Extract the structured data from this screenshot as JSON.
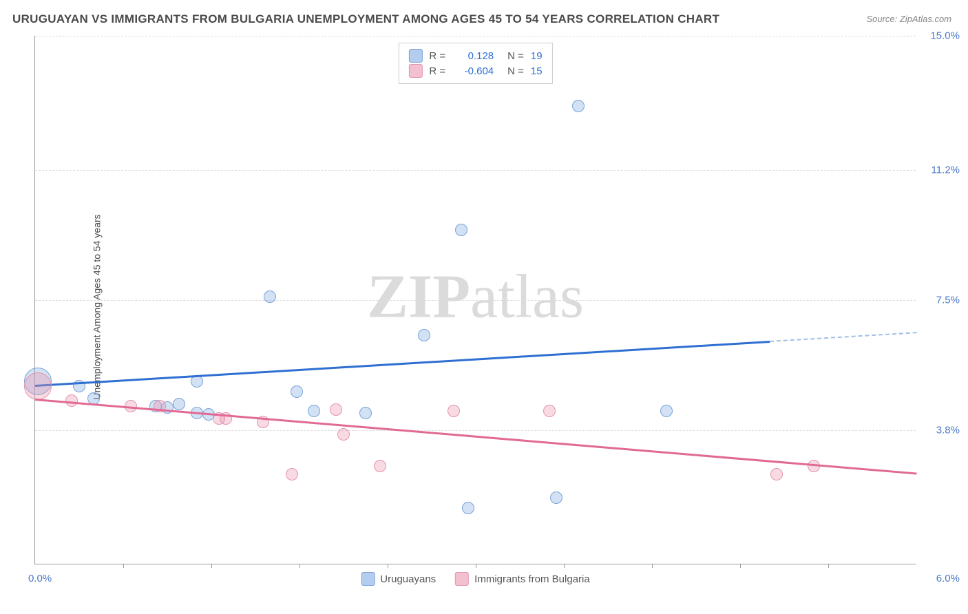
{
  "title": "URUGUAYAN VS IMMIGRANTS FROM BULGARIA UNEMPLOYMENT AMONG AGES 45 TO 54 YEARS CORRELATION CHART",
  "source": "Source: ZipAtlas.com",
  "ylabel": "Unemployment Among Ages 45 to 54 years",
  "watermark_a": "ZIP",
  "watermark_b": "atlas",
  "chart": {
    "type": "scatter",
    "xlim": [
      0.0,
      6.0
    ],
    "ylim": [
      0.0,
      15.0
    ],
    "x_min_label": "0.0%",
    "x_max_label": "6.0%",
    "y_ticks": [
      3.8,
      7.5,
      11.2,
      15.0
    ],
    "y_tick_labels": [
      "3.8%",
      "7.5%",
      "11.2%",
      "15.0%"
    ],
    "x_tick_positions": [
      0.6,
      1.2,
      1.8,
      2.4,
      3.0,
      3.6,
      4.2,
      4.8,
      5.4
    ],
    "background_color": "#ffffff",
    "grid_color": "#dcdcdc",
    "axis_color": "#9a9a9a",
    "tick_label_color": "#4a78c8",
    "marker_radius": 9,
    "series": [
      {
        "name": "Uruguayans",
        "color_fill": "rgba(130,170,225,0.35)",
        "color_stroke": "#7aa3d9",
        "line_color": "#2e6fd1",
        "r": 0.128,
        "n": 19,
        "trend": {
          "x1": 0.0,
          "y1": 5.1,
          "x2": 5.0,
          "y2": 6.35
        },
        "trend_ext": {
          "x1": 5.0,
          "y1": 6.35,
          "x2": 6.0,
          "y2": 6.6
        },
        "points": [
          {
            "x": 0.02,
            "y": 5.2,
            "big": true
          },
          {
            "x": 0.3,
            "y": 5.05
          },
          {
            "x": 0.4,
            "y": 4.7
          },
          {
            "x": 0.82,
            "y": 4.5
          },
          {
            "x": 0.9,
            "y": 4.45
          },
          {
            "x": 0.98,
            "y": 4.55
          },
          {
            "x": 1.1,
            "y": 5.2
          },
          {
            "x": 1.1,
            "y": 4.3
          },
          {
            "x": 1.18,
            "y": 4.25
          },
          {
            "x": 1.6,
            "y": 7.6
          },
          {
            "x": 1.78,
            "y": 4.9
          },
          {
            "x": 1.9,
            "y": 4.35
          },
          {
            "x": 2.25,
            "y": 4.3
          },
          {
            "x": 2.65,
            "y": 6.5
          },
          {
            "x": 2.9,
            "y": 9.5
          },
          {
            "x": 2.95,
            "y": 1.6
          },
          {
            "x": 3.55,
            "y": 1.9
          },
          {
            "x": 3.7,
            "y": 13.0
          },
          {
            "x": 4.3,
            "y": 4.35
          }
        ]
      },
      {
        "name": "Immigrants from Bulgaria",
        "color_fill": "rgba(235,150,175,0.35)",
        "color_stroke": "#e394ad",
        "line_color": "#e16a92",
        "r": -0.604,
        "n": 15,
        "trend": {
          "x1": 0.0,
          "y1": 4.7,
          "x2": 6.0,
          "y2": 2.6
        },
        "points": [
          {
            "x": 0.02,
            "y": 5.05,
            "big": true
          },
          {
            "x": 0.25,
            "y": 4.65
          },
          {
            "x": 0.65,
            "y": 4.5
          },
          {
            "x": 0.85,
            "y": 4.5
          },
          {
            "x": 1.25,
            "y": 4.15
          },
          {
            "x": 1.3,
            "y": 4.15
          },
          {
            "x": 1.55,
            "y": 4.05
          },
          {
            "x": 1.75,
            "y": 2.55
          },
          {
            "x": 2.05,
            "y": 4.4
          },
          {
            "x": 2.1,
            "y": 3.7
          },
          {
            "x": 2.35,
            "y": 2.8
          },
          {
            "x": 2.85,
            "y": 4.35
          },
          {
            "x": 3.5,
            "y": 4.35
          },
          {
            "x": 5.05,
            "y": 2.55
          },
          {
            "x": 5.3,
            "y": 2.8
          }
        ]
      }
    ],
    "legend_top": {
      "r_label": "R =",
      "n_label": "N ="
    },
    "legend_bottom": [
      {
        "swatch": 0,
        "label": "Uruguayans"
      },
      {
        "swatch": 1,
        "label": "Immigrants from Bulgaria"
      }
    ]
  }
}
